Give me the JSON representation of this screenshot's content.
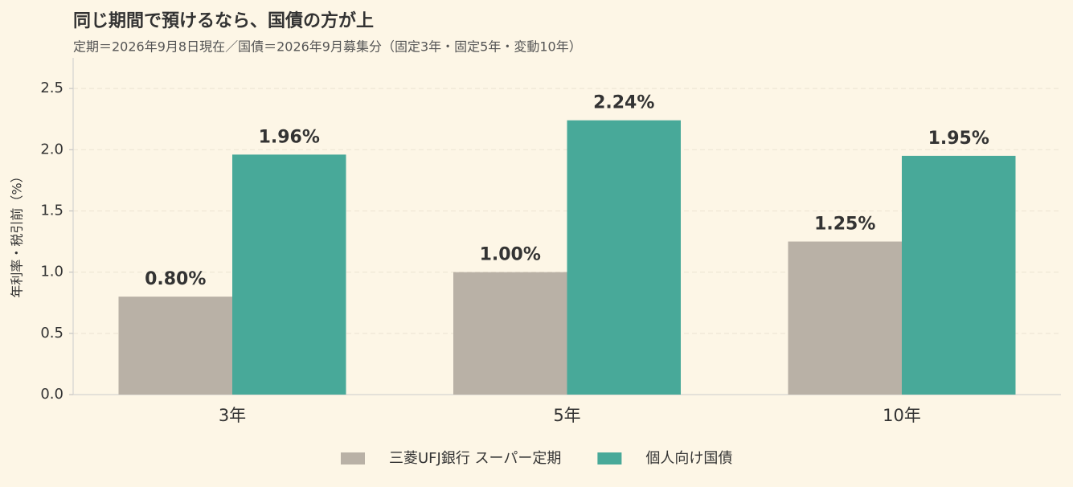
{
  "chart_data": {
    "type": "bar",
    "title": "同じ期間で預けるなら、国債の方が上",
    "subtitle": "定期＝2026年9月8日現在／国債＝2026年9月募集分（固定3年・固定5年・変動10年）",
    "y_label": "年利率・税引前（%）",
    "categories": [
      "3年",
      "5年",
      "10年"
    ],
    "series": [
      {
        "name": "三菱UFJ銀行 スーパー定期",
        "color": "#b9b1a6",
        "values": [
          0.8,
          1.0,
          1.25
        ],
        "value_labels": [
          "0.80%",
          "1.00%",
          "1.25%"
        ]
      },
      {
        "name": "個人向け国債",
        "color": "#48a999",
        "values": [
          1.96,
          2.24,
          1.95
        ],
        "value_labels": [
          "1.96%",
          "2.24%",
          "1.95%"
        ]
      }
    ],
    "ylim": [
      0,
      2.75
    ],
    "yticks": [
      {
        "value": 0,
        "label": "0.0"
      },
      0.5,
      {
        "value": 1,
        "label": "1.0"
      },
      1.5,
      {
        "value": 2,
        "label": "2.0"
      },
      2.5
    ],
    "grid": true,
    "legend": "bottom"
  }
}
